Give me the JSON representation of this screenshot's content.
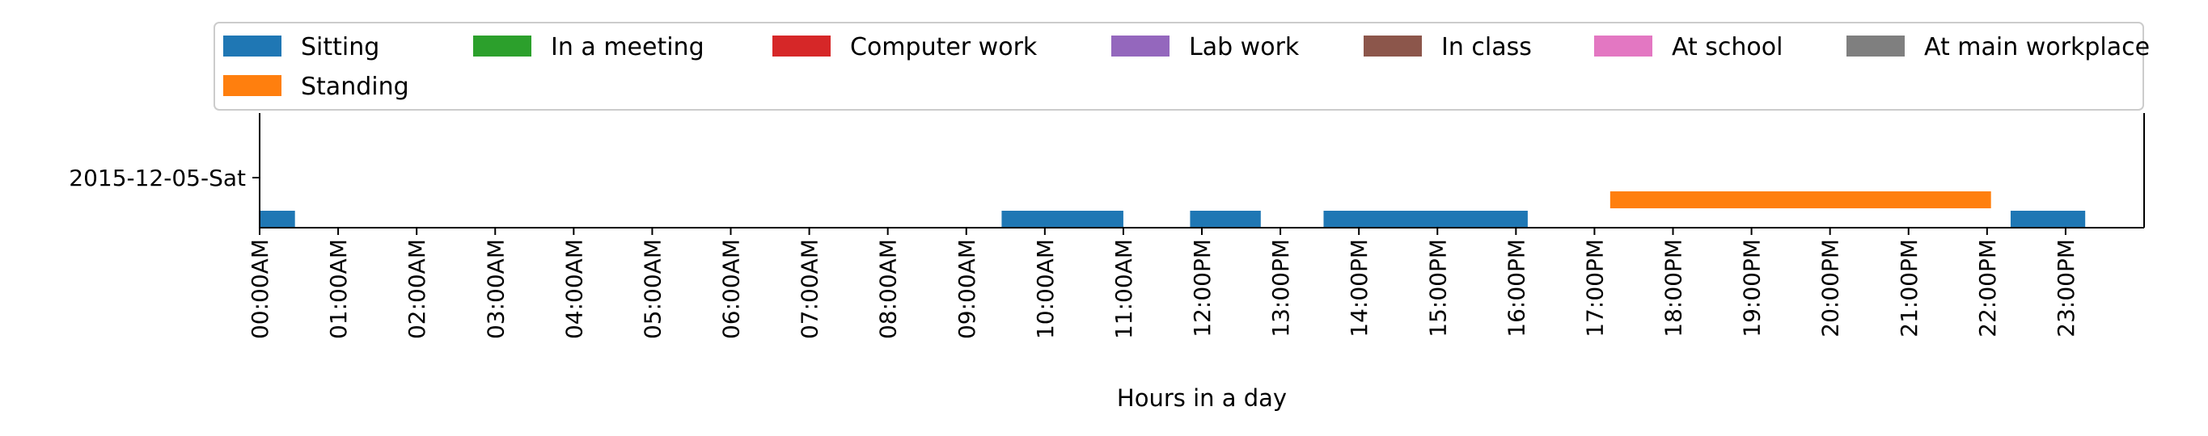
{
  "chart_data": {
    "type": "bar",
    "orientation": "horizontal-timeline",
    "xlabel": "Hours in a day",
    "ylabel": "",
    "xlim": [
      0,
      24
    ],
    "x_tick_labels": [
      "00:00AM",
      "01:00AM",
      "02:00AM",
      "03:00AM",
      "04:00AM",
      "05:00AM",
      "06:00AM",
      "07:00AM",
      "08:00AM",
      "09:00AM",
      "10:00AM",
      "11:00AM",
      "12:00PM",
      "13:00PM",
      "14:00PM",
      "15:00PM",
      "16:00PM",
      "17:00PM",
      "18:00PM",
      "19:00PM",
      "20:00PM",
      "21:00PM",
      "22:00PM",
      "23:00PM"
    ],
    "categories": [
      "2015-12-05-Sat"
    ],
    "legend_position": "top",
    "grid": false,
    "series": [
      {
        "name": "Sitting",
        "color": "#1f77b4",
        "level": 0,
        "intervals": [
          [
            0.0,
            0.45
          ],
          [
            9.45,
            11.0
          ],
          [
            11.85,
            12.75
          ],
          [
            13.55,
            16.15
          ],
          [
            22.3,
            23.25
          ]
        ]
      },
      {
        "name": "Standing",
        "color": "#ff7f0e",
        "level": 1,
        "intervals": [
          [
            17.2,
            22.05
          ]
        ]
      },
      {
        "name": "In a meeting",
        "color": "#2ca02c",
        "level": 2,
        "intervals": []
      },
      {
        "name": "Computer work",
        "color": "#d62728",
        "level": 3,
        "intervals": []
      },
      {
        "name": "Lab work",
        "color": "#9467bd",
        "level": 4,
        "intervals": []
      },
      {
        "name": "In class",
        "color": "#8c564b",
        "level": 5,
        "intervals": []
      },
      {
        "name": "At school",
        "color": "#e377c2",
        "level": 6,
        "intervals": []
      },
      {
        "name": "At main workplace",
        "color": "#7f7f7f",
        "level": 7,
        "intervals": []
      }
    ]
  }
}
